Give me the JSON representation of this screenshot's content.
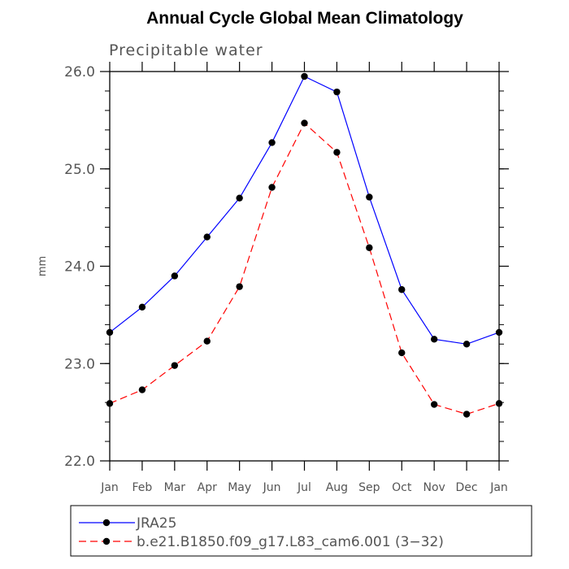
{
  "chart_data": {
    "type": "line",
    "title": "Annual Cycle Global Mean Climatology",
    "subtitle": "Precipitable water",
    "xlabel": "",
    "ylabel": "mm",
    "categories": [
      "Jan",
      "Feb",
      "Mar",
      "Apr",
      "May",
      "Jun",
      "Jul",
      "Aug",
      "Sep",
      "Oct",
      "Nov",
      "Dec",
      "Jan"
    ],
    "ylim": [
      22.0,
      26.0
    ],
    "yticks": [
      "22.0",
      "23.0",
      "24.0",
      "25.0",
      "26.0"
    ],
    "grid": false,
    "legend_position": "bottom",
    "series": [
      {
        "name": "JRA25",
        "color": "#0000ff",
        "dash": "solid",
        "values": [
          23.32,
          23.58,
          23.9,
          24.3,
          24.7,
          25.27,
          25.95,
          25.79,
          24.71,
          23.76,
          23.25,
          23.2,
          23.32
        ]
      },
      {
        "name": "b.e21.B1850.f09_g17.L83_cam6.001 (3−32)",
        "color": "#ff0000",
        "dash": "dashed",
        "values": [
          22.59,
          22.73,
          22.98,
          23.23,
          23.79,
          24.81,
          25.47,
          25.17,
          24.19,
          23.11,
          22.58,
          22.48,
          22.59
        ]
      }
    ]
  }
}
